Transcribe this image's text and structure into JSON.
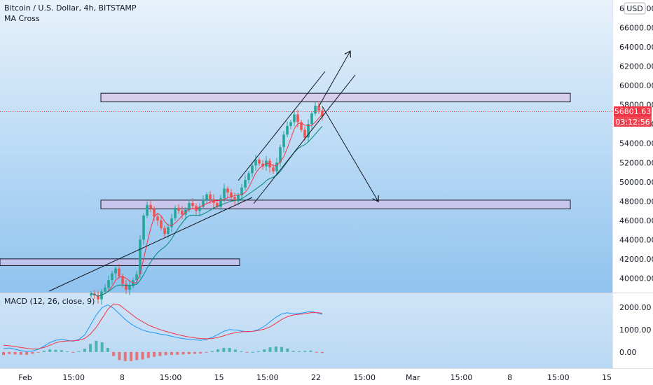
{
  "header": {
    "symbol_line": "Bitcoin / U.S. Dollar, 4h, BITSTAMP",
    "indicator": "MA Cross",
    "currency_button": "USD"
  },
  "price_tags": {
    "last_price": "56801.63",
    "countdown": "03:12:56"
  },
  "macd_label": "MACD (12, 26, close, 9)",
  "colors": {
    "bg_top": "#e8f2fb",
    "bg_bottom": "#8fc3ef",
    "candle_up": "#26a69a",
    "candle_down": "#ef5350",
    "macd_line": "#2196f3",
    "signal_line": "#f23645",
    "zone_fill": "#e1bee7",
    "zone_border": "#131722",
    "price_tag": "#f23645"
  },
  "chart_data": {
    "type": "candlestick",
    "x_ticks": [
      "Feb",
      "15:00",
      "8",
      "15:00",
      "15",
      "15:00",
      "22",
      "15:00",
      "Mar",
      "15:00",
      "8",
      "15:00",
      "15"
    ],
    "price_axis": {
      "ticks": [
        "68000.00",
        "66000.00",
        "64000.00",
        "62000.00",
        "60000.00",
        "58000.00",
        "56000.00",
        "54000.00",
        "52000.00",
        "50000.00",
        "48000.00",
        "46000.00",
        "44000.00",
        "42000.00",
        "40000.00"
      ],
      "range": [
        38500,
        68300
      ]
    },
    "macd_axis": {
      "ticks": [
        "2000.00",
        "1000.00",
        "0.00"
      ],
      "range": [
        -600,
        2400
      ]
    },
    "price_series_close": [
      38400,
      38200,
      37800,
      38600,
      39000,
      39800,
      40500,
      41000,
      40200,
      39400,
      38800,
      39200,
      39800,
      40400,
      44000,
      46500,
      47600,
      47200,
      46400,
      46000,
      45200,
      44600,
      45300,
      46200,
      47300,
      47000,
      46600,
      47100,
      47800,
      47500,
      47000,
      47400,
      48100,
      48700,
      48200,
      47800,
      47400,
      48300,
      49300,
      48900,
      48400,
      48000,
      48600,
      49400,
      50200,
      50900,
      51700,
      52300,
      51900,
      51600,
      52200,
      51500,
      51100,
      52000,
      53600,
      54900,
      55800,
      56200,
      57000,
      56200,
      55400,
      54600,
      56000,
      57100,
      57900,
      57400,
      56800
    ],
    "resistance_zones": [
      {
        "low": 58300,
        "high": 59200
      },
      {
        "low": 47200,
        "high": 48100
      },
      {
        "low": 41300,
        "high": 42000
      }
    ],
    "macd_series": [
      150,
      180,
      120,
      60,
      20,
      40,
      120,
      260,
      420,
      520,
      560,
      520,
      480,
      560,
      760,
      1200,
      1650,
      1980,
      2100,
      1950,
      1700,
      1450,
      1250,
      1100,
      980,
      900,
      860,
      800,
      760,
      700,
      640,
      600,
      560,
      540,
      520,
      560,
      650,
      780,
      920,
      1000,
      980,
      940,
      900,
      920,
      1000,
      1150,
      1350,
      1550,
      1700,
      1750,
      1700,
      1720,
      1760,
      1820,
      1750,
      1680
    ],
    "signal_series": [
      300,
      280,
      240,
      200,
      160,
      130,
      140,
      200,
      300,
      410,
      470,
      490,
      500,
      520,
      600,
      800,
      1100,
      1500,
      1900,
      2150,
      2100,
      1900,
      1700,
      1500,
      1350,
      1200,
      1100,
      1000,
      920,
      850,
      780,
      720,
      670,
      630,
      600,
      590,
      600,
      650,
      720,
      800,
      860,
      900,
      910,
      920,
      960,
      1020,
      1120,
      1280,
      1450,
      1580,
      1650,
      1680,
      1710,
      1750,
      1760,
      1730
    ],
    "ylim": [
      38500,
      68300
    ]
  }
}
